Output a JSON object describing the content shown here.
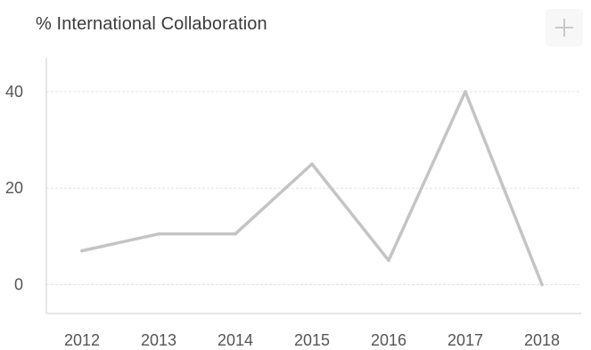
{
  "chart": {
    "title": "% International Collaboration"
  },
  "toolbar": {
    "add_icon": "plus-icon"
  },
  "colors": {
    "line": "#c4c4c4",
    "grid": "#e3e3e3",
    "axis": "#cccccc",
    "text": "#3b3b3b",
    "button_bg": "#f7f7f7"
  },
  "chart_data": {
    "type": "line",
    "title": "% International Collaboration",
    "categories": [
      "2012",
      "2013",
      "2014",
      "2015",
      "2016",
      "2017",
      "2018"
    ],
    "series": [
      {
        "values": [
          7,
          10.5,
          10.5,
          25,
          5,
          40,
          0
        ]
      }
    ],
    "yticks": [
      0,
      20,
      40
    ],
    "ylim": [
      -6,
      47
    ],
    "xlabel": "",
    "ylabel": "",
    "grid": true,
    "legend": "none"
  }
}
